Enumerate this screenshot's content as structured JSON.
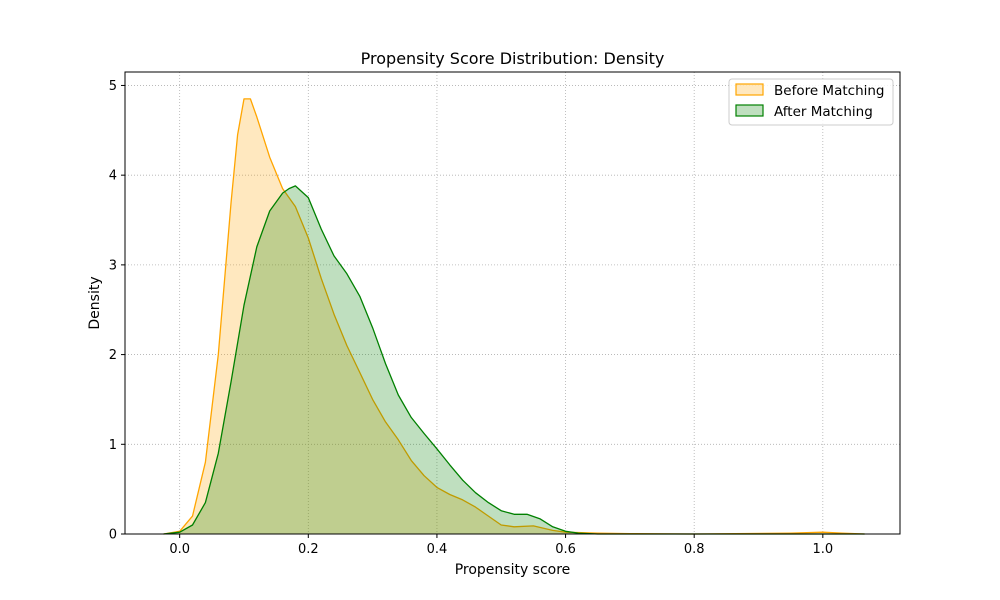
{
  "chart_data": {
    "type": "area",
    "title": "Propensity Score Distribution: Density",
    "xlabel": "Propensity score",
    "ylabel": "Density",
    "xlim": [
      -0.085,
      1.12
    ],
    "ylim": [
      0,
      5.15
    ],
    "xticks": [
      0.0,
      0.2,
      0.4,
      0.6,
      0.8,
      1.0
    ],
    "xtick_labels": [
      "0.0",
      "0.2",
      "0.4",
      "0.6",
      "0.8",
      "1.0"
    ],
    "yticks": [
      0,
      1,
      2,
      3,
      4,
      5
    ],
    "ytick_labels": [
      "0",
      "1",
      "2",
      "3",
      "4",
      "5"
    ],
    "grid": true,
    "legend_position": "top-right",
    "series": [
      {
        "name": "Before Matching",
        "line_color": "#FFA500",
        "fill_color": "#FFA500",
        "points": [
          [
            -0.025,
            0.0
          ],
          [
            0.0,
            0.03
          ],
          [
            0.02,
            0.2
          ],
          [
            0.04,
            0.8
          ],
          [
            0.06,
            2.0
          ],
          [
            0.08,
            3.7
          ],
          [
            0.09,
            4.45
          ],
          [
            0.1,
            4.85
          ],
          [
            0.11,
            4.85
          ],
          [
            0.12,
            4.65
          ],
          [
            0.14,
            4.2
          ],
          [
            0.16,
            3.85
          ],
          [
            0.18,
            3.65
          ],
          [
            0.2,
            3.3
          ],
          [
            0.22,
            2.85
          ],
          [
            0.24,
            2.45
          ],
          [
            0.26,
            2.1
          ],
          [
            0.28,
            1.8
          ],
          [
            0.3,
            1.5
          ],
          [
            0.32,
            1.25
          ],
          [
            0.34,
            1.05
          ],
          [
            0.36,
            0.82
          ],
          [
            0.38,
            0.65
          ],
          [
            0.4,
            0.52
          ],
          [
            0.42,
            0.44
          ],
          [
            0.44,
            0.38
          ],
          [
            0.46,
            0.3
          ],
          [
            0.48,
            0.2
          ],
          [
            0.5,
            0.1
          ],
          [
            0.52,
            0.08
          ],
          [
            0.55,
            0.09
          ],
          [
            0.58,
            0.04
          ],
          [
            0.6,
            0.02
          ],
          [
            0.65,
            0.01
          ],
          [
            0.7,
            0.005
          ],
          [
            0.8,
            0.0
          ],
          [
            0.95,
            0.01
          ],
          [
            1.0,
            0.02
          ],
          [
            1.03,
            0.01
          ],
          [
            1.065,
            0.0
          ]
        ]
      },
      {
        "name": "After Matching",
        "line_color": "#008000",
        "fill_color": "#008000",
        "points": [
          [
            -0.025,
            0.0
          ],
          [
            0.0,
            0.02
          ],
          [
            0.02,
            0.1
          ],
          [
            0.04,
            0.35
          ],
          [
            0.06,
            0.9
          ],
          [
            0.08,
            1.7
          ],
          [
            0.1,
            2.55
          ],
          [
            0.12,
            3.2
          ],
          [
            0.14,
            3.6
          ],
          [
            0.16,
            3.8
          ],
          [
            0.17,
            3.85
          ],
          [
            0.18,
            3.88
          ],
          [
            0.2,
            3.75
          ],
          [
            0.22,
            3.4
          ],
          [
            0.24,
            3.1
          ],
          [
            0.26,
            2.9
          ],
          [
            0.28,
            2.65
          ],
          [
            0.3,
            2.3
          ],
          [
            0.32,
            1.9
          ],
          [
            0.34,
            1.55
          ],
          [
            0.36,
            1.3
          ],
          [
            0.38,
            1.12
          ],
          [
            0.4,
            0.95
          ],
          [
            0.42,
            0.77
          ],
          [
            0.44,
            0.6
          ],
          [
            0.46,
            0.46
          ],
          [
            0.48,
            0.35
          ],
          [
            0.5,
            0.26
          ],
          [
            0.52,
            0.22
          ],
          [
            0.54,
            0.22
          ],
          [
            0.56,
            0.17
          ],
          [
            0.58,
            0.08
          ],
          [
            0.6,
            0.03
          ],
          [
            0.62,
            0.01
          ],
          [
            0.65,
            0.0
          ],
          [
            1.065,
            0.0
          ]
        ]
      }
    ]
  }
}
